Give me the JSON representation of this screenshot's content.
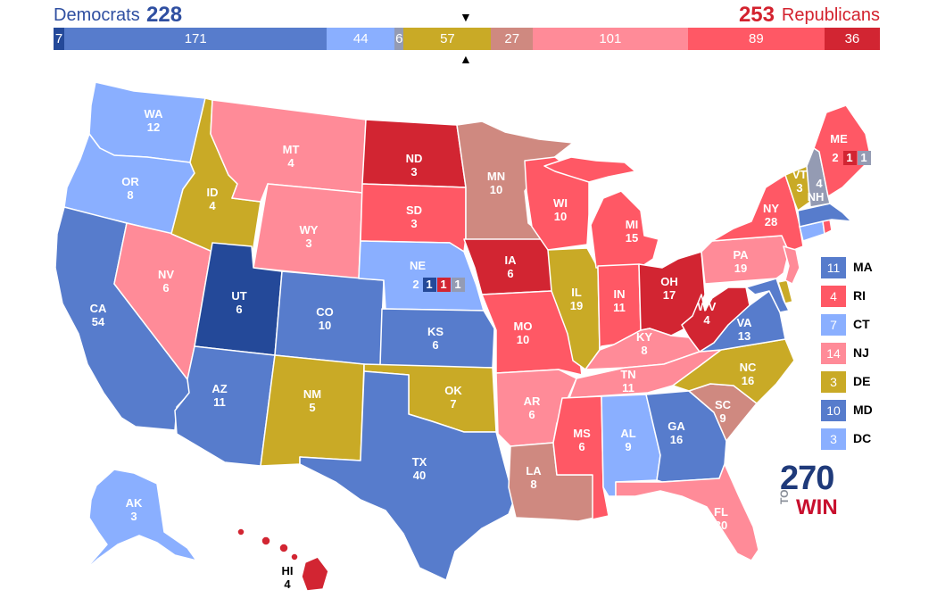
{
  "header": {
    "dem_label": "Democrats",
    "dem_total": "228",
    "rep_total": "253",
    "rep_label": "Republicans",
    "marker_top": "▼",
    "marker_bottom": "▲"
  },
  "colors": {
    "safe_d": "#244999",
    "likely_d": "#577ccc",
    "lean_d": "#8aafff",
    "tilt_d": "#949bb3",
    "tossup": "#c9aa26",
    "tilt_r": "#cf8980",
    "lean_r": "#ff8b98",
    "likely_r": "#ff5865",
    "safe_r": "#d22532"
  },
  "bar": [
    {
      "label": "7",
      "value": 7,
      "color": "#244999"
    },
    {
      "label": "171",
      "value": 171,
      "color": "#577ccc"
    },
    {
      "label": "44",
      "value": 44,
      "color": "#8aafff"
    },
    {
      "label": "6",
      "value": 6,
      "color": "#949bb3"
    },
    {
      "label": "57",
      "value": 57,
      "color": "#c9aa26"
    },
    {
      "label": "27",
      "value": 27,
      "color": "#cf8980"
    },
    {
      "label": "101",
      "value": 101,
      "color": "#ff8b98"
    },
    {
      "label": "89",
      "value": 89,
      "color": "#ff5865"
    },
    {
      "label": "36",
      "value": 36,
      "color": "#d22532"
    }
  ],
  "states": {
    "WA": {
      "abbr": "WA",
      "ev": "12"
    },
    "OR": {
      "abbr": "OR",
      "ev": "8"
    },
    "CA": {
      "abbr": "CA",
      "ev": "54"
    },
    "NV": {
      "abbr": "NV",
      "ev": "6"
    },
    "ID": {
      "abbr": "ID",
      "ev": "4"
    },
    "MT": {
      "abbr": "MT",
      "ev": "4"
    },
    "WY": {
      "abbr": "WY",
      "ev": "3"
    },
    "UT": {
      "abbr": "UT",
      "ev": "6"
    },
    "AZ": {
      "abbr": "AZ",
      "ev": "11"
    },
    "CO": {
      "abbr": "CO",
      "ev": "10"
    },
    "NM": {
      "abbr": "NM",
      "ev": "5"
    },
    "ND": {
      "abbr": "ND",
      "ev": "3"
    },
    "SD": {
      "abbr": "SD",
      "ev": "3"
    },
    "NE": {
      "abbr": "NE",
      "ev": "2"
    },
    "KS": {
      "abbr": "KS",
      "ev": "6"
    },
    "OK": {
      "abbr": "OK",
      "ev": "7"
    },
    "TX": {
      "abbr": "TX",
      "ev": "40"
    },
    "MN": {
      "abbr": "MN",
      "ev": "10"
    },
    "IA": {
      "abbr": "IA",
      "ev": "6"
    },
    "MO": {
      "abbr": "MO",
      "ev": "10"
    },
    "AR": {
      "abbr": "AR",
      "ev": "6"
    },
    "LA": {
      "abbr": "LA",
      "ev": "8"
    },
    "WI": {
      "abbr": "WI",
      "ev": "10"
    },
    "IL": {
      "abbr": "IL",
      "ev": "19"
    },
    "MI": {
      "abbr": "MI",
      "ev": "15"
    },
    "IN": {
      "abbr": "IN",
      "ev": "11"
    },
    "OH": {
      "abbr": "OH",
      "ev": "17"
    },
    "KY": {
      "abbr": "KY",
      "ev": "8"
    },
    "TN": {
      "abbr": "TN",
      "ev": "11"
    },
    "MS": {
      "abbr": "MS",
      "ev": "6"
    },
    "AL": {
      "abbr": "AL",
      "ev": "9"
    },
    "GA": {
      "abbr": "GA",
      "ev": "16"
    },
    "FL": {
      "abbr": "FL",
      "ev": "30"
    },
    "SC": {
      "abbr": "SC",
      "ev": "9"
    },
    "NC": {
      "abbr": "NC",
      "ev": "16"
    },
    "VA": {
      "abbr": "VA",
      "ev": "13"
    },
    "WV": {
      "abbr": "WV",
      "ev": "4"
    },
    "PA": {
      "abbr": "PA",
      "ev": "19"
    },
    "NY": {
      "abbr": "NY",
      "ev": "28"
    },
    "VT": {
      "abbr": "VT",
      "ev": "3"
    },
    "NH": {
      "abbr": "NH",
      "ev": "4"
    },
    "ME": {
      "abbr": "ME",
      "ev": "2"
    },
    "AK": {
      "abbr": "AK",
      "ev": "3"
    },
    "HI": {
      "abbr": "HI",
      "ev": "4"
    }
  },
  "districts": {
    "ne1": "1",
    "ne2": "1",
    "ne3": "1",
    "me1": "1",
    "me2": "1"
  },
  "legend": [
    {
      "value": "11",
      "name": "MA",
      "color": "#577ccc"
    },
    {
      "value": "4",
      "name": "RI",
      "color": "#ff5865"
    },
    {
      "value": "7",
      "name": "CT",
      "color": "#8aafff"
    },
    {
      "value": "14",
      "name": "NJ",
      "color": "#ff8b98"
    },
    {
      "value": "3",
      "name": "DE",
      "color": "#c9aa26"
    },
    {
      "value": "10",
      "name": "MD",
      "color": "#577ccc"
    },
    {
      "value": "3",
      "name": "DC",
      "color": "#8aafff"
    }
  ],
  "logo": {
    "number": "270",
    "to": "TO",
    "win": "WIN"
  }
}
